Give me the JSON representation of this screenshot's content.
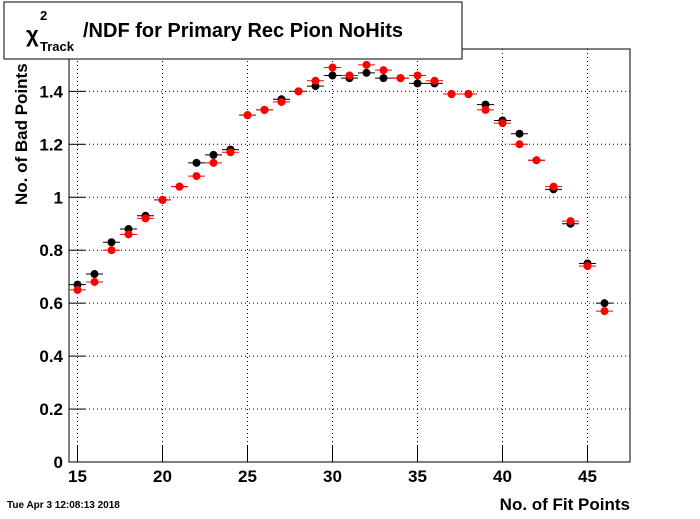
{
  "chart_data": {
    "type": "scatter",
    "title": {
      "symbol": "χ",
      "superscript": "2",
      "subscript": "Track",
      "text": "/NDF for Primary Rec Pion NoHits"
    },
    "x_label": "No. of Fit Points",
    "y_label": "No. of Bad Points",
    "timestamp": "Tue Apr  3 12:08:13 2018",
    "x": [
      15,
      16,
      17,
      18,
      19,
      20,
      21,
      22,
      23,
      24,
      25,
      26,
      27,
      28,
      29,
      30,
      31,
      32,
      33,
      34,
      35,
      36,
      37,
      38,
      39,
      40,
      41,
      42,
      43,
      44,
      45,
      46
    ],
    "xerr": 0.5,
    "series": [
      {
        "color": "#000000",
        "values": [
          0.67,
          0.71,
          0.83,
          0.88,
          0.93,
          0.99,
          1.04,
          1.13,
          1.16,
          1.18,
          1.31,
          1.33,
          1.37,
          1.4,
          1.42,
          1.46,
          1.45,
          1.47,
          1.45,
          1.45,
          1.43,
          1.43,
          1.39,
          1.39,
          1.35,
          1.29,
          1.24,
          1.14,
          1.03,
          0.9,
          0.75,
          0.6
        ]
      },
      {
        "color": "#ff0000",
        "values": [
          0.65,
          0.68,
          0.8,
          0.86,
          0.92,
          0.99,
          1.04,
          1.08,
          1.13,
          1.17,
          1.31,
          1.33,
          1.36,
          1.4,
          1.44,
          1.49,
          1.46,
          1.5,
          1.48,
          1.45,
          1.46,
          1.44,
          1.39,
          1.39,
          1.33,
          1.28,
          1.2,
          1.14,
          1.04,
          0.91,
          0.74,
          0.57
        ]
      }
    ],
    "xlim": [
      14.5,
      47.5
    ],
    "ylim": [
      0,
      1.56
    ],
    "xticks": [
      15,
      20,
      25,
      30,
      35,
      40,
      45
    ],
    "yticks": [
      0,
      0.2,
      0.4,
      0.6,
      0.8,
      1,
      1.2,
      1.4
    ],
    "grid": true
  }
}
